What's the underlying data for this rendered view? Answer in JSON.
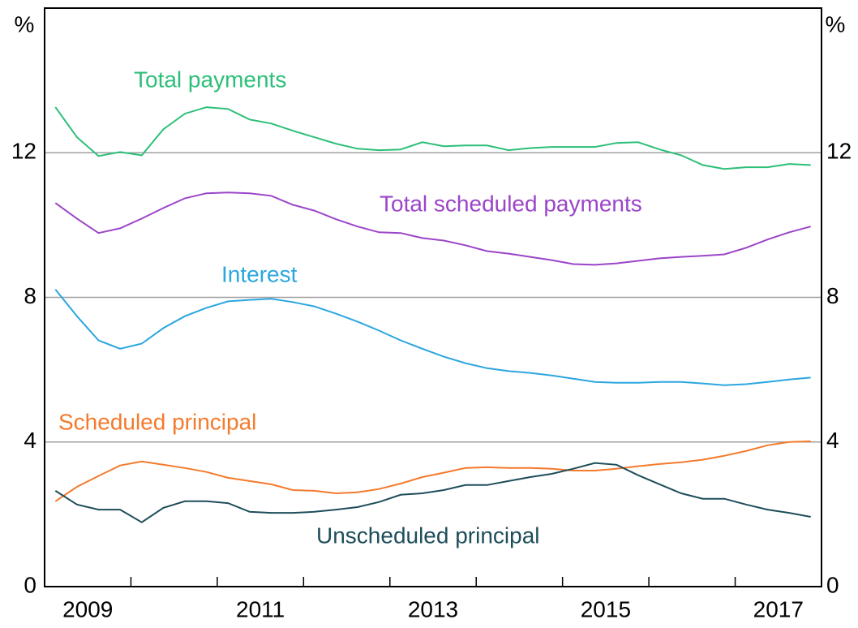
{
  "chart_data": {
    "type": "line",
    "y_unit": "%",
    "xlim": [
      2009,
      2018
    ],
    "xticks": [
      {
        "value": 2009.5,
        "label": "2009"
      },
      {
        "value": 2011.5,
        "label": "2011"
      },
      {
        "value": 2013.5,
        "label": "2013"
      },
      {
        "value": 2015.5,
        "label": "2015"
      },
      {
        "value": 2017.5,
        "label": "2017"
      }
    ],
    "xminor_ticks": [
      2010,
      2011,
      2012,
      2013,
      2014,
      2015,
      2016,
      2017
    ],
    "ylim": [
      0,
      16
    ],
    "yticks": [
      0,
      4,
      8,
      12
    ],
    "grid": true,
    "x": [
      2009.125,
      2009.375,
      2009.625,
      2009.875,
      2010.125,
      2010.375,
      2010.625,
      2010.875,
      2011.125,
      2011.375,
      2011.625,
      2011.875,
      2012.125,
      2012.375,
      2012.625,
      2012.875,
      2013.125,
      2013.375,
      2013.625,
      2013.875,
      2014.125,
      2014.375,
      2014.625,
      2014.875,
      2015.125,
      2015.375,
      2015.625,
      2015.875,
      2016.125,
      2016.375,
      2016.625,
      2016.875,
      2017.125,
      2017.375,
      2017.625,
      2017.875
    ],
    "series": [
      {
        "name": "Total payments",
        "color": "#2cbf78",
        "values": [
          13.26,
          12.43,
          11.91,
          12.02,
          11.93,
          12.65,
          13.08,
          13.26,
          13.21,
          12.92,
          12.81,
          12.61,
          12.43,
          12.25,
          12.11,
          12.07,
          12.09,
          12.29,
          12.18,
          12.2,
          12.2,
          12.07,
          12.13,
          12.16,
          12.16,
          12.16,
          12.27,
          12.29,
          12.09,
          11.93,
          11.66,
          11.55,
          11.6,
          11.6,
          11.69,
          11.66
        ]
      },
      {
        "name": "Total scheduled payments",
        "color": "#9b45c8",
        "values": [
          10.61,
          10.18,
          9.78,
          9.91,
          10.18,
          10.47,
          10.74,
          10.88,
          10.9,
          10.88,
          10.81,
          10.56,
          10.4,
          10.16,
          9.96,
          9.8,
          9.78,
          9.64,
          9.57,
          9.44,
          9.28,
          9.21,
          9.12,
          9.03,
          8.92,
          8.9,
          8.94,
          9.01,
          9.08,
          9.12,
          9.15,
          9.19,
          9.37,
          9.6,
          9.8,
          9.96
        ]
      },
      {
        "name": "Interest",
        "color": "#2ba6df",
        "values": [
          8.22,
          7.48,
          6.81,
          6.58,
          6.72,
          7.15,
          7.48,
          7.71,
          7.89,
          7.93,
          7.96,
          7.87,
          7.75,
          7.55,
          7.33,
          7.08,
          6.81,
          6.58,
          6.36,
          6.18,
          6.04,
          5.96,
          5.91,
          5.84,
          5.75,
          5.66,
          5.64,
          5.64,
          5.66,
          5.66,
          5.62,
          5.57,
          5.6,
          5.66,
          5.73,
          5.78
        ]
      },
      {
        "name": "Scheduled principal",
        "color": "#f47a2c",
        "values": [
          2.36,
          2.76,
          3.06,
          3.35,
          3.46,
          3.37,
          3.28,
          3.17,
          3.01,
          2.92,
          2.83,
          2.67,
          2.65,
          2.58,
          2.61,
          2.7,
          2.85,
          3.03,
          3.15,
          3.28,
          3.3,
          3.28,
          3.28,
          3.26,
          3.21,
          3.21,
          3.26,
          3.33,
          3.39,
          3.44,
          3.51,
          3.62,
          3.75,
          3.91,
          4.0,
          4.02
        ]
      },
      {
        "name": "Unscheduled principal",
        "color": "#1e4d5a",
        "values": [
          2.65,
          2.27,
          2.13,
          2.13,
          1.78,
          2.18,
          2.36,
          2.36,
          2.31,
          2.07,
          2.04,
          2.04,
          2.07,
          2.13,
          2.2,
          2.34,
          2.54,
          2.58,
          2.67,
          2.81,
          2.81,
          2.92,
          3.03,
          3.12,
          3.26,
          3.42,
          3.37,
          3.08,
          2.83,
          2.58,
          2.43,
          2.43,
          2.27,
          2.13,
          2.04,
          1.93
        ]
      }
    ]
  }
}
